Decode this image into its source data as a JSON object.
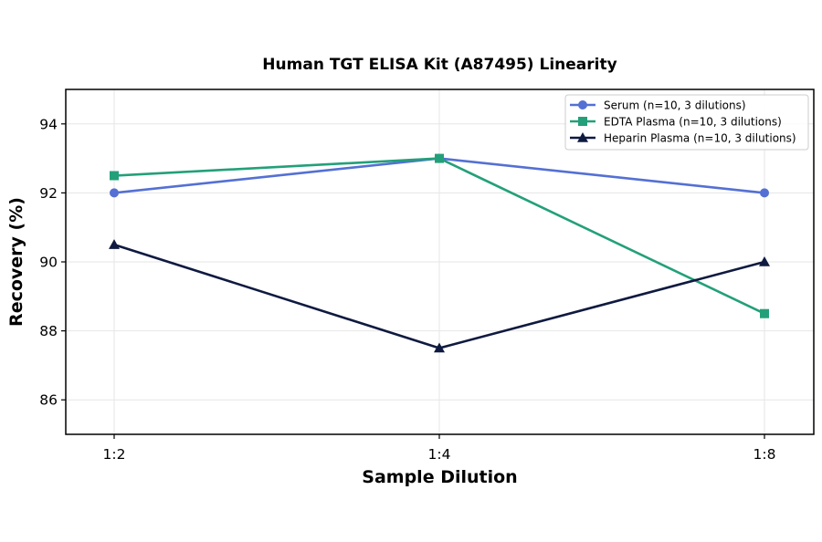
{
  "chart_data": {
    "type": "line",
    "title": "Human TGT ELISA Kit (A87495) Linearity",
    "xlabel": "Sample Dilution",
    "ylabel": "Recovery (%)",
    "categories": [
      "1:2",
      "1:4",
      "1:8"
    ],
    "ylim": [
      85,
      95
    ],
    "yticks": [
      86,
      88,
      90,
      92,
      94
    ],
    "grid": true,
    "legend_position": "top-right",
    "series": [
      {
        "name": "Serum (n=10, 3 dilutions)",
        "values": [
          92.0,
          93.0,
          92.0
        ],
        "color": "#5470d4",
        "marker": "circle"
      },
      {
        "name": "EDTA Plasma (n=10, 3 dilutions)",
        "values": [
          92.5,
          93.0,
          88.5
        ],
        "color": "#23a079",
        "marker": "square"
      },
      {
        "name": "Heparin Plasma (n=10, 3 dilutions)",
        "values": [
          90.5,
          87.5,
          90.0
        ],
        "color": "#0f1a40",
        "marker": "triangle"
      }
    ]
  }
}
